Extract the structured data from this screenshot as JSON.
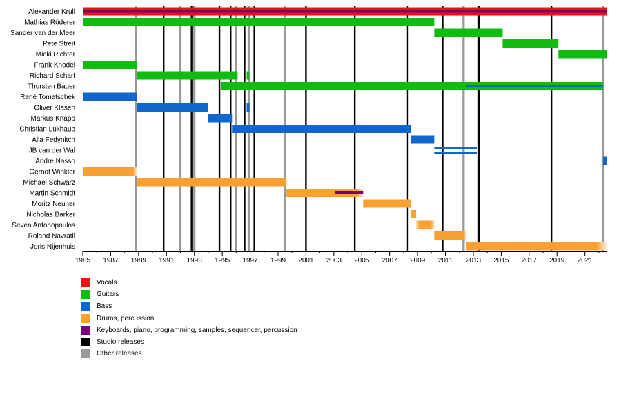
{
  "chart_data": {
    "type": "timeline",
    "xlim": [
      1985,
      2022.6
    ],
    "x_ticks": [
      "1985",
      "1987",
      "1989",
      "1991",
      "1993",
      "1995",
      "1997",
      "1999",
      "2001",
      "2003",
      "2005",
      "2007",
      "2009",
      "2011",
      "2013",
      "2015",
      "2017",
      "2019",
      "2021"
    ],
    "roles": [
      {
        "id": "vocals",
        "label": "Vocals",
        "color": "#ee1111"
      },
      {
        "id": "guitars",
        "label": "Guitars",
        "color": "#11bb11"
      },
      {
        "id": "bass",
        "label": "Bass",
        "color": "#1166cc"
      },
      {
        "id": "drums",
        "label": "Drums, percussion",
        "color": "#f8a030"
      },
      {
        "id": "keys",
        "label": "Keyboards, piano, programming, samples, sequencer, percussion",
        "color": "#770077"
      },
      {
        "id": "studio",
        "label": "Studio releases",
        "color": "#000000"
      },
      {
        "id": "other",
        "label": "Other releases",
        "color": "#999999"
      }
    ],
    "members": [
      {
        "name": "Alexander Krull",
        "bars": [
          {
            "role": "vocals",
            "start": 1985,
            "end": 2022.6
          },
          {
            "role": "keys",
            "start": 1985,
            "end": 2022.6,
            "secondary": true
          }
        ]
      },
      {
        "name": "Mathias Röderer",
        "bars": [
          {
            "role": "guitars",
            "start": 1985,
            "end": 2010.2
          }
        ]
      },
      {
        "name": "Sander van der Meer",
        "bars": [
          {
            "role": "guitars",
            "start": 2010.2,
            "end": 2015.1
          }
        ]
      },
      {
        "name": "Pete Streit",
        "bars": [
          {
            "role": "guitars",
            "start": 2015.1,
            "end": 2019.1
          }
        ]
      },
      {
        "name": "Micki Richter",
        "bars": [
          {
            "role": "guitars",
            "start": 2019.1,
            "end": 2022.6
          }
        ]
      },
      {
        "name": "Frank Knodel",
        "bars": [
          {
            "role": "guitars",
            "start": 1985,
            "end": 1988.9
          }
        ]
      },
      {
        "name": "Richard Scharf",
        "bars": [
          {
            "role": "guitars",
            "start": 1988.9,
            "end": 1996.1
          },
          {
            "role": "guitars",
            "start": 1996.75,
            "end": 1996.95
          }
        ]
      },
      {
        "name": "Thorsten Bauer",
        "bars": [
          {
            "role": "guitars",
            "start": 1994.9,
            "end": 2022.3
          },
          {
            "role": "bass",
            "start": 2012.5,
            "end": 2022.3,
            "secondary": true
          }
        ]
      },
      {
        "name": "René Tometschek",
        "bars": [
          {
            "role": "bass",
            "start": 1985,
            "end": 1988.9
          }
        ]
      },
      {
        "name": "Oliver Klasen",
        "bars": [
          {
            "role": "bass",
            "start": 1988.9,
            "end": 1994
          },
          {
            "role": "bass",
            "start": 1996.75,
            "end": 1996.95
          }
        ]
      },
      {
        "name": "Markus Knapp",
        "bars": [
          {
            "role": "bass",
            "start": 1994,
            "end": 1995.7
          }
        ]
      },
      {
        "name": "Christian Lukhaup",
        "bars": [
          {
            "role": "bass",
            "start": 1995.7,
            "end": 2008.5
          }
        ]
      },
      {
        "name": "Alla Fedynitch",
        "bars": [
          {
            "role": "bass",
            "start": 2008.5,
            "end": 2010.2
          }
        ]
      },
      {
        "name": "JB van der Wal",
        "bars": [
          {
            "role": "bass",
            "start": 2010.2,
            "end": 2013.3,
            "split": true
          }
        ]
      },
      {
        "name": "Andre Nasso",
        "bars": [
          {
            "role": "bass",
            "start": 2022.3,
            "end": 2022.6
          }
        ]
      },
      {
        "name": "Gernot Winkler",
        "bars": [
          {
            "role": "drums",
            "start": 1985,
            "end": 1988.9,
            "fade": "right"
          }
        ]
      },
      {
        "name": "Michael Schwarz",
        "bars": [
          {
            "role": "drums",
            "start": 1988.9,
            "end": 1999.6
          }
        ]
      },
      {
        "name": "Martin Schmidt",
        "bars": [
          {
            "role": "drums",
            "start": 1999.6,
            "end": 2005.1,
            "fade": "right"
          },
          {
            "role": "keys",
            "start": 2003.1,
            "end": 2005.1,
            "secondary": true
          }
        ]
      },
      {
        "name": "Moritz Neuner",
        "bars": [
          {
            "role": "drums",
            "start": 2005.1,
            "end": 2008.5
          }
        ]
      },
      {
        "name": "Nicholas Barker",
        "bars": [
          {
            "role": "drums",
            "start": 2008.5,
            "end": 2008.9
          }
        ]
      },
      {
        "name": "Seven Antonopoulos",
        "bars": [
          {
            "role": "drums",
            "start": 2008.9,
            "end": 2010.2,
            "fade": "both"
          }
        ]
      },
      {
        "name": "Roland Navratil",
        "bars": [
          {
            "role": "drums",
            "start": 2010.2,
            "end": 2012.5,
            "fade": "right"
          }
        ]
      },
      {
        "name": "Joris Nijenhuis",
        "bars": [
          {
            "role": "drums",
            "start": 2012.5,
            "end": 2022.6,
            "fade": "right"
          }
        ]
      }
    ],
    "studio_releases": [
      1990.8,
      1992.8,
      1994.8,
      1995.6,
      1996.6,
      1997.3,
      2001.0,
      2004.5,
      2008.3,
      2010.8,
      2013.4,
      2018.6
    ],
    "other_releases": [
      1988.8,
      1992.0,
      1993.0,
      1996.0,
      1996.9,
      1999.5,
      2012.3,
      2022.3
    ]
  }
}
